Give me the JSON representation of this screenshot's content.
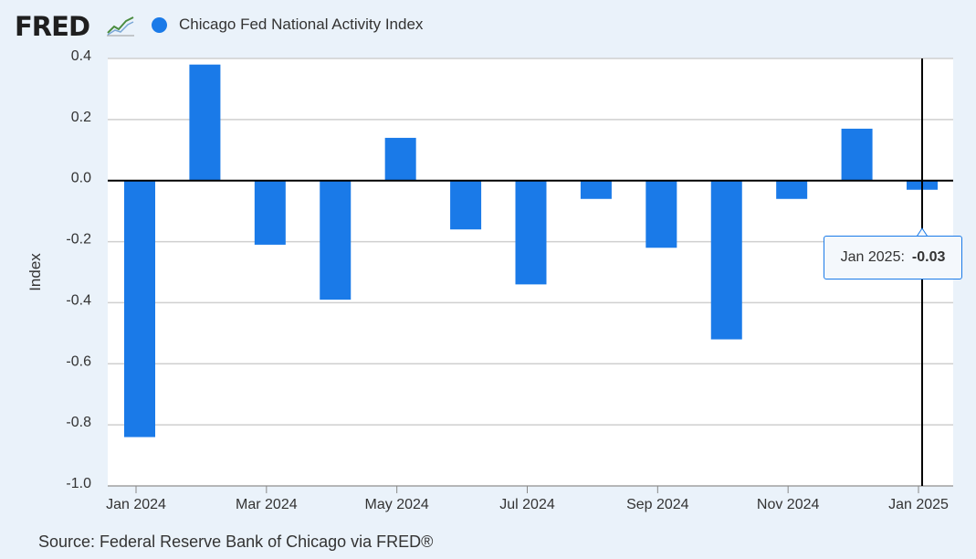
{
  "header": {
    "logo_text": "FRED",
    "logo_icon": "line-graph-icon"
  },
  "colors": {
    "series": "#1a7ae8",
    "grid": "#cfcfcf",
    "zero_line": "#000000",
    "background": "#eaf2fa",
    "plot_background": "#ffffff"
  },
  "chart_data": {
    "type": "bar",
    "x": [
      "Jan 2024",
      "Feb 2024",
      "Mar 2024",
      "Apr 2024",
      "May 2024",
      "Jun 2024",
      "Jul 2024",
      "Aug 2024",
      "Sep 2024",
      "Oct 2024",
      "Nov 2024",
      "Dec 2024",
      "Jan 2025"
    ],
    "series": [
      {
        "name": "Chicago Fed National Activity Index",
        "values": [
          -0.84,
          0.38,
          -0.21,
          -0.39,
          0.14,
          -0.16,
          -0.34,
          -0.06,
          -0.22,
          -0.52,
          -0.06,
          0.17,
          -0.03
        ]
      }
    ],
    "ylabel": "Index",
    "ylim": [
      -1.0,
      0.4
    ],
    "yticks": [
      "0.4",
      "0.2",
      "0.0",
      "-0.2",
      "-0.4",
      "-0.6",
      "-0.8",
      "-1.0"
    ],
    "ytick_values": [
      0.4,
      0.2,
      0.0,
      -0.2,
      -0.4,
      -0.6,
      -0.8,
      -1.0
    ],
    "xticks": [
      "Jan 2024",
      "Mar 2024",
      "May 2024",
      "Jul 2024",
      "Sep 2024",
      "Nov 2024",
      "Jan 2025"
    ],
    "xtick_index": [
      0,
      2,
      4,
      6,
      8,
      10,
      12
    ],
    "grid": true,
    "legend": "top-left",
    "hover_index": 12
  },
  "tooltip": {
    "label": "Jan 2025:",
    "value": "-0.03"
  },
  "footer": {
    "source": "Source: Federal Reserve Bank of Chicago via FRED®"
  }
}
